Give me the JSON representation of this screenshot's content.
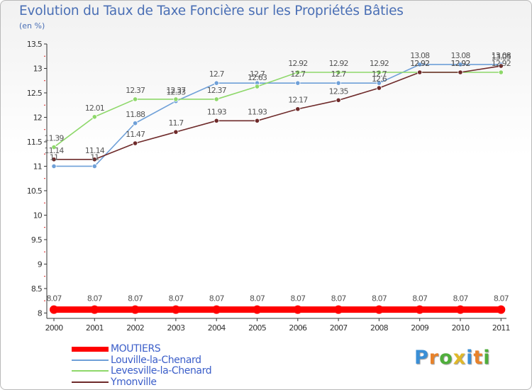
{
  "title": "Evolution du Taux de Taxe Foncière sur les Propriétés Bâties",
  "unit": "(en %)",
  "logo": {
    "letters": [
      "P",
      "r",
      "o",
      "x",
      "i",
      "t",
      "i"
    ],
    "colors": [
      "#3a8fd6",
      "#e8822a",
      "#4fae3b",
      "#e0b82a",
      "#3a8fd6",
      "#e8822a",
      "#4fae3b"
    ]
  },
  "chart_data": {
    "type": "line",
    "categories": [
      "2000",
      "2001",
      "2002",
      "2003",
      "2004",
      "2005",
      "2006",
      "2007",
      "2008",
      "2009",
      "2010",
      "2011"
    ],
    "ylim": [
      8,
      13.5
    ],
    "yticks": [
      "8",
      "8.5",
      "9",
      "9.5",
      "10",
      "10.5",
      "11",
      "11.5",
      "12",
      "12.5",
      "13",
      "13.5"
    ],
    "grid": false,
    "series": [
      {
        "name": "MOUTIERS",
        "color": "#ff0000",
        "values": [
          8.07,
          8.07,
          8.07,
          8.07,
          8.07,
          8.07,
          8.07,
          8.07,
          8.07,
          8.07,
          8.07,
          8.07
        ],
        "labels": [
          "8.07",
          "8.07",
          "8.07",
          "8.07",
          "8.07",
          "8.07",
          "8.07",
          "8.07",
          "8.07",
          "8.07",
          "8.07",
          "8.07"
        ]
      },
      {
        "name": "Louville-la-Chenard",
        "color": "#6fa0d8",
        "values": [
          11,
          11,
          11.88,
          12.33,
          12.7,
          12.7,
          12.7,
          12.7,
          12.7,
          13.08,
          13.08,
          13.08
        ],
        "labels": [
          "11",
          "11",
          "11.88",
          "12.33",
          "12.7",
          "12.7",
          "12.7",
          "12.7",
          "12.7",
          "13.08",
          "13.08",
          "13.08"
        ]
      },
      {
        "name": "Levesville-la-Chenard",
        "color": "#8ed86a",
        "values": [
          11.39,
          12.01,
          12.37,
          12.37,
          12.37,
          12.63,
          12.92,
          12.92,
          12.92,
          12.92,
          12.92,
          12.92
        ],
        "labels": [
          "11.39",
          "12.01",
          "12.37",
          "12.37",
          "12.37",
          "12.63",
          "12.92",
          "12.92",
          "12.92",
          "12.92",
          "12.92",
          "12.92"
        ]
      },
      {
        "name": "Ymonville",
        "color": "#6e2a2a",
        "values": [
          11.14,
          11.14,
          11.47,
          11.7,
          11.93,
          11.93,
          12.17,
          12.35,
          12.6,
          12.92,
          12.92,
          13.05
        ],
        "labels": [
          "11.14",
          "11.14",
          "11.47",
          "11.7",
          "11.93",
          "11.93",
          "12.17",
          "12.35",
          "12.6",
          "12.92",
          "12.92",
          "13.05"
        ]
      }
    ]
  }
}
